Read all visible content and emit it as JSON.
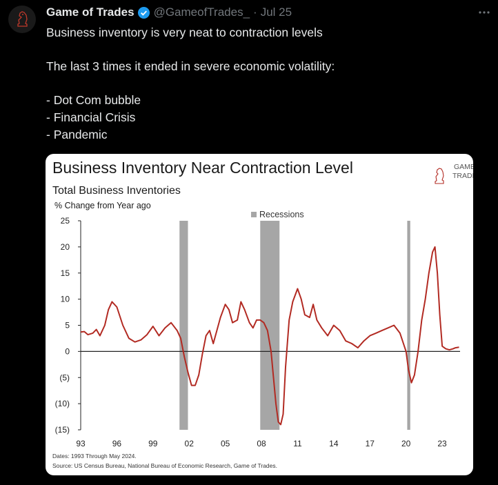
{
  "tweet": {
    "author_name": "Game of Trades",
    "handle": "@GameofTrades_",
    "separator": "·",
    "date": "Jul 25",
    "lines": [
      "Business inventory is very neat to contraction levels",
      "",
      "The last 3 times it ended in severe economic volatility:",
      "",
      "- Dot Com bubble",
      "- Financial Crisis",
      "- Pandemic"
    ]
  },
  "colors": {
    "line": "#b22a22",
    "recession": "#a6a6a6",
    "logo": "#b22a22"
  },
  "logo": {
    "line1": "GAME of",
    "line2": "TRADES"
  },
  "chart_data": {
    "type": "line",
    "title": "Business Inventory Near Contraction Level",
    "subtitle": "Total Business Inventories",
    "ylabel": "% Change from Year ago",
    "legend": "Recessions",
    "x_tick_labels": [
      "93",
      "96",
      "99",
      "02",
      "05",
      "08",
      "11",
      "14",
      "17",
      "20",
      "23"
    ],
    "y_tick_labels": [
      "25",
      "20",
      "15",
      "10",
      "5",
      "0",
      "(5)",
      "(10)",
      "(15)"
    ],
    "y_ticks": [
      25,
      20,
      15,
      10,
      5,
      0,
      -5,
      -10,
      -15
    ],
    "x_ticks": [
      1993,
      1996,
      1999,
      2002,
      2005,
      2008,
      2011,
      2014,
      2017,
      2020,
      2023
    ],
    "xlim": [
      1993,
      2025
    ],
    "ylim": [
      -15,
      25
    ],
    "recessions": [
      [
        2001.2,
        2001.9
      ],
      [
        2007.9,
        2009.5
      ],
      [
        2020.1,
        2020.35
      ]
    ],
    "series": [
      {
        "name": "Total Business Inventories % Change from Year ago",
        "x": [
          1993.0,
          1993.3,
          1993.6,
          1994.0,
          1994.3,
          1994.6,
          1995.0,
          1995.3,
          1995.6,
          1996.0,
          1996.5,
          1997.0,
          1997.5,
          1998.0,
          1998.5,
          1999.0,
          1999.5,
          2000.0,
          2000.5,
          2001.0,
          2001.3,
          2001.6,
          2001.9,
          2002.2,
          2002.5,
          2002.8,
          2003.1,
          2003.4,
          2003.7,
          2004.0,
          2004.3,
          2004.6,
          2005.0,
          2005.3,
          2005.6,
          2006.0,
          2006.3,
          2006.6,
          2007.0,
          2007.3,
          2007.6,
          2007.9,
          2008.2,
          2008.5,
          2008.8,
          2009.0,
          2009.2,
          2009.4,
          2009.6,
          2009.8,
          2010.0,
          2010.3,
          2010.6,
          2011.0,
          2011.3,
          2011.6,
          2012.0,
          2012.3,
          2012.6,
          2013.0,
          2013.5,
          2014.0,
          2014.5,
          2015.0,
          2015.5,
          2016.0,
          2016.5,
          2017.0,
          2017.5,
          2018.0,
          2018.5,
          2019.0,
          2019.5,
          2020.0,
          2020.2,
          2020.45,
          2020.7,
          2021.0,
          2021.3,
          2021.6,
          2021.9,
          2022.2,
          2022.4,
          2022.6,
          2022.8,
          2023.0,
          2023.3,
          2023.6,
          2023.9,
          2024.1,
          2024.4
        ],
        "values": [
          3.7,
          3.8,
          3.2,
          3.5,
          4.2,
          3.0,
          5.0,
          8.0,
          9.5,
          8.5,
          5.0,
          2.5,
          1.8,
          2.2,
          3.2,
          4.8,
          3.0,
          4.5,
          5.5,
          4.0,
          2.5,
          -1.0,
          -4.0,
          -6.5,
          -6.5,
          -4.5,
          -0.5,
          3.0,
          4.0,
          1.5,
          4.0,
          6.5,
          9.0,
          8.0,
          5.5,
          6.0,
          9.5,
          8.0,
          5.5,
          4.5,
          6.0,
          6.0,
          5.5,
          4.0,
          0.0,
          -5.0,
          -10.0,
          -13.5,
          -14.0,
          -12.0,
          -3.0,
          6.0,
          9.5,
          12.0,
          10.0,
          7.0,
          6.5,
          9.0,
          6.0,
          4.5,
          3.0,
          5.0,
          4.0,
          2.0,
          1.5,
          0.7,
          2.0,
          3.0,
          3.5,
          4.0,
          4.5,
          5.0,
          3.5,
          0.0,
          -3.5,
          -6.0,
          -4.5,
          0.0,
          6.0,
          10.0,
          15.0,
          19.0,
          20.0,
          15.0,
          7.0,
          1.0,
          0.5,
          0.3,
          0.5,
          0.7,
          0.8
        ]
      }
    ],
    "footnote_dates": "Dates: 1993 Through May 2024.",
    "footnote_source": "Source: US Census Bureau, National Bureau of Economic Research, Game of Trades."
  }
}
